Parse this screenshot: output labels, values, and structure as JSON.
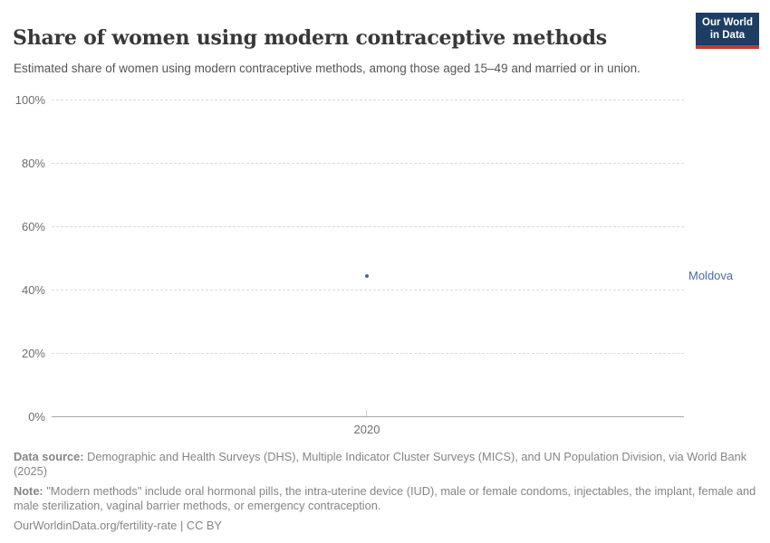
{
  "header": {
    "title": "Share of women using modern contraceptive methods",
    "subtitle": "Estimated share of women using modern contraceptive methods, among those aged 15–49 and married or in union.",
    "logo": {
      "line1": "Our World",
      "line2": "in Data"
    }
  },
  "chart_data": {
    "type": "scatter",
    "title": "Share of women using modern contraceptive methods",
    "categories": [
      2020
    ],
    "series": [
      {
        "name": "Moldova",
        "color": "#4c6a9c",
        "points": [
          {
            "x": 2020,
            "y": 44.3
          }
        ]
      }
    ],
    "x_ticks": [
      "2020"
    ],
    "y_ticks": [
      "0%",
      "20%",
      "40%",
      "60%",
      "80%",
      "100%"
    ],
    "ylim": [
      0,
      100
    ],
    "grid": true,
    "gridline_style": "dashed",
    "legend_position": "right-of-point",
    "entity_label": "Moldova"
  },
  "footer": {
    "datasource_label": "Data source:",
    "datasource_text": " Demographic and Health Surveys (DHS), Multiple Indicator Cluster Surveys (MICS), and UN Population Division, via World Bank (2025)",
    "note_label": "Note:",
    "note_text": " \"Modern methods\" include oral hormonal pills, the intra-uterine device (IUD), male or female condoms, injectables, the implant, female and male sterilization, vaginal barrier methods, or emergency contraception.",
    "citation_url": "OurWorldinData.org/fertility-rate",
    "citation_sep": " | ",
    "citation_license": "CC BY"
  },
  "colors": {
    "accent": "#4c6a9c",
    "logo_bg": "#1d3d63",
    "logo_bar": "#bc3d33",
    "title_text": "#383838",
    "subtitle_text": "#555555",
    "axis_text": "#6e6e6e",
    "gridline": "#dcdcdc",
    "axis_line": "#a5a5a5",
    "footer_text": "#858585"
  }
}
